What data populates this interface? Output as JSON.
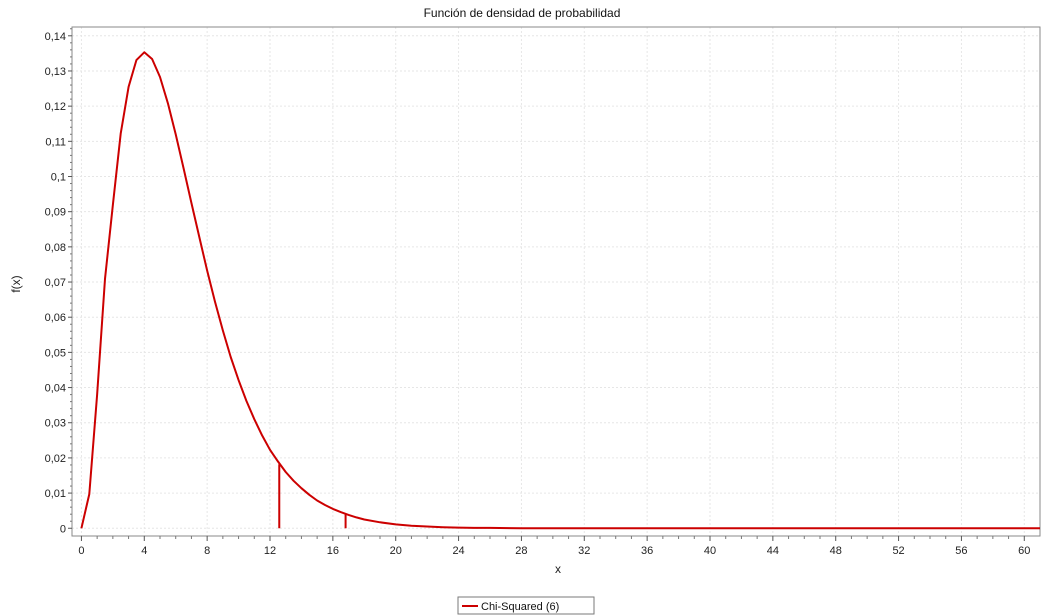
{
  "chart_data": {
    "type": "line",
    "title": "Función de densidad de probabilidad",
    "xlabel": "x",
    "ylabel": "f(x)",
    "xlim": [
      -0.6,
      61
    ],
    "ylim": [
      -0.0022,
      0.1425
    ],
    "x_ticks": [
      0,
      4,
      8,
      12,
      16,
      20,
      24,
      28,
      32,
      36,
      40,
      44,
      48,
      52,
      56,
      60
    ],
    "x_tick_labels": [
      "0",
      "4",
      "8",
      "12",
      "16",
      "20",
      "24",
      "28",
      "32",
      "36",
      "40",
      "44",
      "48",
      "52",
      "56",
      "60"
    ],
    "y_ticks": [
      0,
      0.01,
      0.02,
      0.03,
      0.04,
      0.05,
      0.06,
      0.07,
      0.08,
      0.09,
      0.1,
      0.11,
      0.12,
      0.13,
      0.14
    ],
    "y_tick_labels": [
      "0",
      "0,01",
      "0,02",
      "0,03",
      "0,04",
      "0,05",
      "0,06",
      "0,07",
      "0,08",
      "0,09",
      "0,1",
      "0,11",
      "0,12",
      "0,13",
      "0,14"
    ],
    "grid": true,
    "legend_position": "bottom-center",
    "series": [
      {
        "name": "Chi-Squared (6)",
        "color": "#cc0000",
        "x": [
          0,
          0.5,
          1,
          1.5,
          2,
          2.5,
          3,
          3.5,
          4,
          4.5,
          5,
          5.5,
          6,
          6.5,
          7,
          7.5,
          8,
          8.5,
          9,
          9.5,
          10,
          10.5,
          11,
          11.5,
          12,
          12.5,
          13,
          13.5,
          14,
          14.5,
          15,
          15.5,
          16,
          16.5,
          17,
          17.5,
          18,
          19,
          20,
          21,
          22,
          23,
          24,
          25,
          26,
          28,
          30,
          35,
          40,
          45,
          50,
          55,
          60,
          61
        ],
        "y": [
          0,
          0.0097,
          0.0379,
          0.0709,
          0.092,
          0.1122,
          0.1255,
          0.1331,
          0.1353,
          0.1334,
          0.1283,
          0.1208,
          0.112,
          0.1023,
          0.0925,
          0.0828,
          0.0733,
          0.0644,
          0.0562,
          0.0487,
          0.0421,
          0.0362,
          0.031,
          0.0264,
          0.0223,
          0.019,
          0.016,
          0.0135,
          0.0114,
          0.0095,
          0.0079,
          0.0066,
          0.0055,
          0.0046,
          0.0038,
          0.0031,
          0.0025,
          0.0017,
          0.0011,
          0.0007,
          0.0005,
          0.0003,
          0.0002,
          0.0001,
          0.0001,
          0,
          0,
          0,
          0,
          0,
          0,
          0,
          0,
          0
        ]
      }
    ],
    "markers": [
      {
        "x": 12.59,
        "y": 0.0182
      },
      {
        "x": 16.81,
        "y": 0.0039
      }
    ]
  }
}
